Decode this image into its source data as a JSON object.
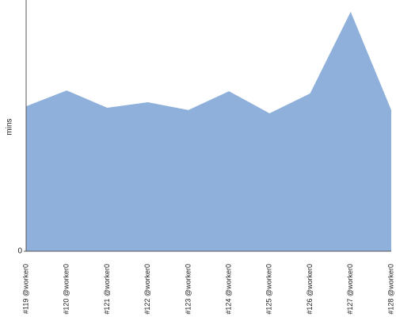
{
  "chart_data": {
    "type": "area",
    "y_label": "mins",
    "categories": [
      "#119 @worker0",
      "#120 @worker0",
      "#121 @worker0",
      "#122 @worker0",
      "#123 @worker0",
      "#124 @worker0",
      "#125 @worker0",
      "#126 @worker0",
      "#127 @worker0",
      "#128 @worker0"
    ],
    "values": [
      57.7,
      64.0,
      57.1,
      59.3,
      56.2,
      63.7,
      54.9,
      62.8,
      95.3,
      56.2
    ],
    "color": "#8eb0da",
    "ylim": [
      0,
      100
    ],
    "yticks": [
      0
    ]
  }
}
